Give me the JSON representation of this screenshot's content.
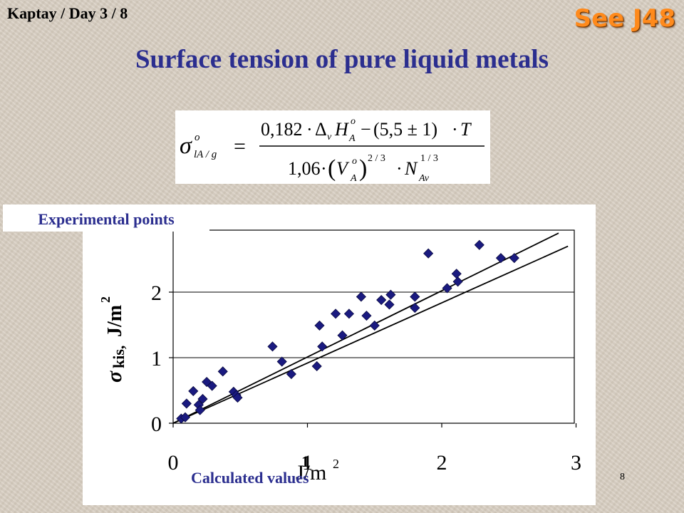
{
  "header": {
    "left_text": "Kaptay / Day 3 / 8",
    "right_text": "See J48"
  },
  "title": "Surface tension of pure liquid metals",
  "formula": {
    "lhs_symbol": "σ",
    "lhs_sup": "o",
    "lhs_sub": "lA / g",
    "equals": "=",
    "num_coef": "0,182",
    "num_dot1": "·",
    "num_delta": "Δ",
    "num_delta_sub": "v",
    "num_H": "H",
    "num_H_sup": "o",
    "num_H_sub": "A",
    "num_minus": "−",
    "num_paren": "(5,5 ± 1)",
    "num_dot2": "·",
    "num_T": "T",
    "den_coef": "1,06",
    "den_dot1": "·",
    "den_V": "V",
    "den_V_sup": "o",
    "den_V_sub": "A",
    "den_exp": "2 / 3",
    "den_dot2": "·",
    "den_N": "N",
    "den_N_sub": "Av",
    "den_N_exp": "1 / 3"
  },
  "labels": {
    "experimental": "Experimental points",
    "calculated": "Calculated values",
    "page_number": "8"
  },
  "chart_data": {
    "type": "scatter",
    "xlabel": "J/m",
    "xlabel_sup": "2",
    "xlabel_extra_tick": "1",
    "ylabel_symbol": "σ",
    "ylabel_sub": "kis,",
    "ylabel_unit": "J/m",
    "ylabel_sup": "2",
    "xlim": [
      0,
      3
    ],
    "ylim": [
      0,
      2.8
    ],
    "xticks": [
      "0",
      "1",
      "2",
      "3"
    ],
    "yticks": [
      "0",
      "1",
      "2"
    ],
    "ytick_values": [
      0,
      1,
      2
    ],
    "xtick_values": [
      0,
      1,
      2,
      3
    ],
    "grid": "horizontal",
    "marker_color": "#1a1a80",
    "points": [
      {
        "x": 0.06,
        "y": 0.07
      },
      {
        "x": 0.09,
        "y": 0.09
      },
      {
        "x": 0.1,
        "y": 0.3
      },
      {
        "x": 0.15,
        "y": 0.49
      },
      {
        "x": 0.19,
        "y": 0.28
      },
      {
        "x": 0.2,
        "y": 0.2
      },
      {
        "x": 0.22,
        "y": 0.37
      },
      {
        "x": 0.25,
        "y": 0.63
      },
      {
        "x": 0.29,
        "y": 0.57
      },
      {
        "x": 0.37,
        "y": 0.79
      },
      {
        "x": 0.45,
        "y": 0.48
      },
      {
        "x": 0.47,
        "y": 0.43
      },
      {
        "x": 0.48,
        "y": 0.39
      },
      {
        "x": 0.74,
        "y": 1.17
      },
      {
        "x": 0.81,
        "y": 0.94
      },
      {
        "x": 0.88,
        "y": 0.75
      },
      {
        "x": 1.07,
        "y": 0.87
      },
      {
        "x": 1.09,
        "y": 1.49
      },
      {
        "x": 1.11,
        "y": 1.17
      },
      {
        "x": 1.21,
        "y": 1.67
      },
      {
        "x": 1.26,
        "y": 1.34
      },
      {
        "x": 1.31,
        "y": 1.67
      },
      {
        "x": 1.4,
        "y": 1.93
      },
      {
        "x": 1.44,
        "y": 1.64
      },
      {
        "x": 1.5,
        "y": 1.49
      },
      {
        "x": 1.55,
        "y": 1.88
      },
      {
        "x": 1.61,
        "y": 1.81
      },
      {
        "x": 1.62,
        "y": 1.96
      },
      {
        "x": 1.8,
        "y": 1.93
      },
      {
        "x": 1.8,
        "y": 1.76
      },
      {
        "x": 1.9,
        "y": 2.59
      },
      {
        "x": 2.04,
        "y": 2.06
      },
      {
        "x": 2.11,
        "y": 2.28
      },
      {
        "x": 2.12,
        "y": 2.16
      },
      {
        "x": 2.28,
        "y": 2.72
      },
      {
        "x": 2.44,
        "y": 2.52
      },
      {
        "x": 2.54,
        "y": 2.52
      }
    ],
    "lines": [
      {
        "x": [
          0,
          2.87
        ],
        "y": [
          0,
          2.9
        ]
      },
      {
        "x": [
          0,
          2.94
        ],
        "y": [
          0,
          2.7
        ]
      }
    ]
  }
}
